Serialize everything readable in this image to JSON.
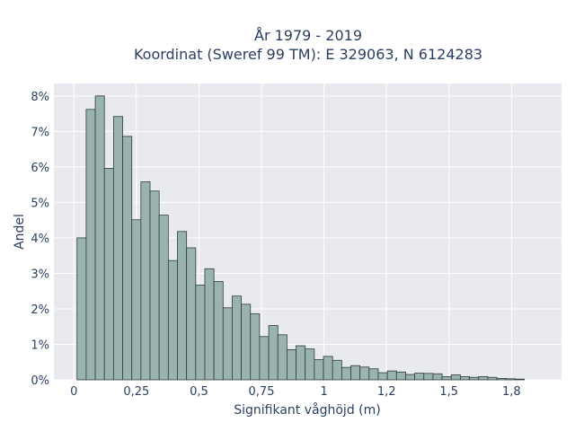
{
  "chart_data": {
    "type": "bar",
    "title_lines": [
      "År 1979 - 2019",
      "Koordinat (Sweref 99 TM): E 329063, N 6124283"
    ],
    "xlabel": "Signifikant våghöjd (m)",
    "ylabel": "Andel",
    "x_ticks": [
      0,
      0.25,
      0.5,
      0.75,
      1,
      1.25,
      1.5,
      1.75
    ],
    "x_tick_labels": [
      "0",
      "0,25",
      "0,5",
      "0,75",
      "1",
      "1,2",
      "1,5",
      "1,8"
    ],
    "y_ticks": [
      0,
      1,
      2,
      3,
      4,
      5,
      6,
      7,
      8
    ],
    "y_tick_labels": [
      "0%",
      "1%",
      "2%",
      "3%",
      "4%",
      "5%",
      "6%",
      "7%",
      "8%"
    ],
    "xlim": [
      -0.08,
      1.95
    ],
    "ylim": [
      0,
      8.35
    ],
    "bin_start": 0.0125,
    "bin_width": 0.0365,
    "values": [
      4.0,
      7.62,
      8.0,
      5.96,
      7.42,
      6.86,
      4.51,
      5.58,
      5.32,
      4.64,
      3.36,
      4.18,
      3.72,
      2.67,
      3.13,
      2.77,
      2.03,
      2.36,
      2.13,
      1.86,
      1.22,
      1.53,
      1.27,
      0.85,
      0.96,
      0.87,
      0.57,
      0.66,
      0.55,
      0.35,
      0.4,
      0.36,
      0.31,
      0.2,
      0.25,
      0.22,
      0.15,
      0.19,
      0.18,
      0.17,
      0.09,
      0.14,
      0.09,
      0.07,
      0.09,
      0.07,
      0.04,
      0.03,
      0.02
    ],
    "colors": {
      "bar_fill": "#9ab3b1",
      "bar_stroke": "#2f3d3c",
      "plot_bg": "#e9e9f0",
      "grid": "#ffffff"
    },
    "grid": true
  }
}
